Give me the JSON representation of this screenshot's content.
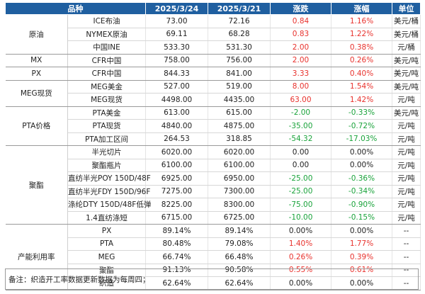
{
  "headers": [
    "品种",
    "2025/3/24",
    "2025/3/21",
    "涨跌",
    "涨幅",
    "单位"
  ],
  "groups": [
    {
      "category": "原油",
      "rows": [
        {
          "name": "ICE布油",
          "v1": "73.00",
          "v2": "72.16",
          "chg": "0.84",
          "pct": "1.16%",
          "unit": "美元/桶",
          "dir": "up"
        },
        {
          "name": "NYMEX原油",
          "v1": "69.11",
          "v2": "68.28",
          "chg": "0.83",
          "pct": "1.22%",
          "unit": "美元/桶",
          "dir": "up"
        },
        {
          "name": "中国INE",
          "v1": "533.30",
          "v2": "531.30",
          "chg": "2.00",
          "pct": "0.38%",
          "unit": "元/桶",
          "dir": "up"
        }
      ]
    },
    {
      "category": "MX",
      "rows": [
        {
          "name": "CFR中国",
          "v1": "758.00",
          "v2": "756.00",
          "chg": "2.00",
          "pct": "0.26%",
          "unit": "美元/吨",
          "dir": "up"
        }
      ]
    },
    {
      "category": "PX",
      "rows": [
        {
          "name": "CFR中国",
          "v1": "844.33",
          "v2": "841.00",
          "chg": "3.33",
          "pct": "0.40%",
          "unit": "美元/吨",
          "dir": "up"
        }
      ]
    },
    {
      "category": "MEG现货",
      "rows": [
        {
          "name": "MEG美金",
          "v1": "527.00",
          "v2": "519.00",
          "chg": "8.00",
          "pct": "1.54%",
          "unit": "美元/吨",
          "dir": "up"
        },
        {
          "name": "MEG现货",
          "v1": "4498.00",
          "v2": "4435.00",
          "chg": "63.00",
          "pct": "1.42%",
          "unit": "元/吨",
          "dir": "up"
        }
      ]
    },
    {
      "category": "PTA价格",
      "rows": [
        {
          "name": "PTA美金",
          "v1": "613.00",
          "v2": "615.00",
          "chg": "-2.00",
          "pct": "-0.33%",
          "unit": "美元/吨",
          "dir": "down"
        },
        {
          "name": "PTA现货",
          "v1": "4840.00",
          "v2": "4875.00",
          "chg": "-35.00",
          "pct": "-0.72%",
          "unit": "元/吨",
          "dir": "down"
        },
        {
          "name": "PTA加工区间",
          "v1": "264.53",
          "v2": "318.85",
          "chg": "-54.32",
          "pct": "-17.03%",
          "unit": "元/吨",
          "dir": "down"
        }
      ]
    },
    {
      "category": "聚酯",
      "rows": [
        {
          "name": "半光切片",
          "v1": "6020.00",
          "v2": "6020.00",
          "chg": "0.00",
          "pct": "0.00%",
          "unit": "元/吨",
          "dir": "flat"
        },
        {
          "name": "聚酯瓶片",
          "v1": "6100.00",
          "v2": "6100.00",
          "chg": "0.00",
          "pct": "0.00%",
          "unit": "元/吨",
          "dir": "flat"
        },
        {
          "name": "直纺半光POY 150D/48F",
          "v1": "6925.00",
          "v2": "6950.00",
          "chg": "-25.00",
          "pct": "-0.36%",
          "unit": "元/吨",
          "dir": "down"
        },
        {
          "name": "直纺半光FDY 150D/96F",
          "v1": "7275.00",
          "v2": "7300.00",
          "chg": "-25.00",
          "pct": "-0.34%",
          "unit": "元/吨",
          "dir": "down"
        },
        {
          "name": "涤纶DTY 150D/48F低弹",
          "v1": "8225.00",
          "v2": "8300.00",
          "chg": "-75.00",
          "pct": "-0.90%",
          "unit": "元/吨",
          "dir": "down"
        },
        {
          "name": "1.4直纺涤短",
          "v1": "6715.00",
          "v2": "6725.00",
          "chg": "-10.00",
          "pct": "-0.15%",
          "unit": "元/吨",
          "dir": "down"
        }
      ]
    },
    {
      "category": "产能利用率",
      "rows": [
        {
          "name": "PX",
          "v1": "89.14%",
          "v2": "89.14%",
          "chg": "0.00%",
          "pct": "0.00%",
          "unit": "--",
          "dir": "flat"
        },
        {
          "name": "PTA",
          "v1": "80.48%",
          "v2": "79.08%",
          "chg": "1.40%",
          "pct": "1.77%",
          "unit": "--",
          "dir": "up"
        },
        {
          "name": "MEG",
          "v1": "66.74%",
          "v2": "66.48%",
          "chg": "0.26%",
          "pct": "0.39%",
          "unit": "--",
          "dir": "up"
        },
        {
          "name": "聚酯",
          "v1": "91.13%",
          "v2": "90.58%",
          "chg": "0.55%",
          "pct": "0.61%",
          "unit": "--",
          "dir": "up"
        },
        {
          "name": "织造",
          "v1": "62.64%",
          "v2": "62.64%",
          "chg": "0.00%",
          "pct": "0.00%",
          "unit": "--",
          "dir": "flat"
        }
      ]
    }
  ],
  "note": "备注：织造开工率数据更新数据为每周四；",
  "colors": {
    "header_bg": "#1f5fa0",
    "up": "#e8322d",
    "down": "#1aa33b"
  }
}
